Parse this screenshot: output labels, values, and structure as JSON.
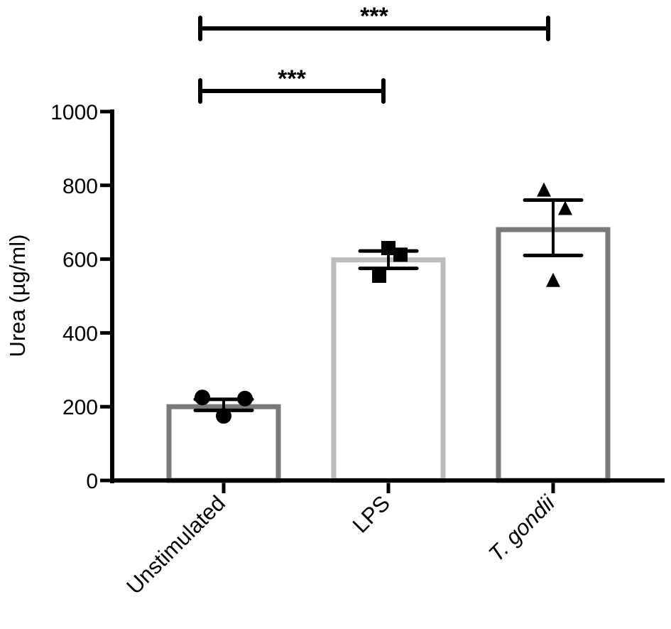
{
  "chart_data": {
    "type": "bar",
    "title": "",
    "xlabel": "",
    "ylabel": "Urea (µg/ml)",
    "ylim": [
      0,
      1000
    ],
    "yticks": [
      0,
      200,
      400,
      600,
      800,
      1000
    ],
    "grid": false,
    "legend": null,
    "categories": [
      "Unstimulated",
      "LPS",
      "T. gondii"
    ],
    "category_italic": [
      false,
      false,
      true
    ],
    "values": [
      200,
      598,
      680
    ],
    "error_bars": [
      {
        "low": 190,
        "high": 220
      },
      {
        "low": 575,
        "high": 622
      },
      {
        "low": 610,
        "high": 760
      }
    ],
    "points": [
      {
        "marker": "circle",
        "values": [
          225,
          222,
          175
        ]
      },
      {
        "marker": "square",
        "values": [
          630,
          612,
          555
        ]
      },
      {
        "marker": "triangle",
        "values": [
          785,
          735,
          540
        ]
      }
    ],
    "bar_colors": [
      "#7a7a7a",
      "#bdbdbd",
      "#7a7a7a"
    ],
    "significance": [
      {
        "from": "Unstimulated",
        "to": "T. gondii",
        "label": "***"
      },
      {
        "from": "Unstimulated",
        "to": "LPS",
        "label": "***"
      }
    ]
  }
}
